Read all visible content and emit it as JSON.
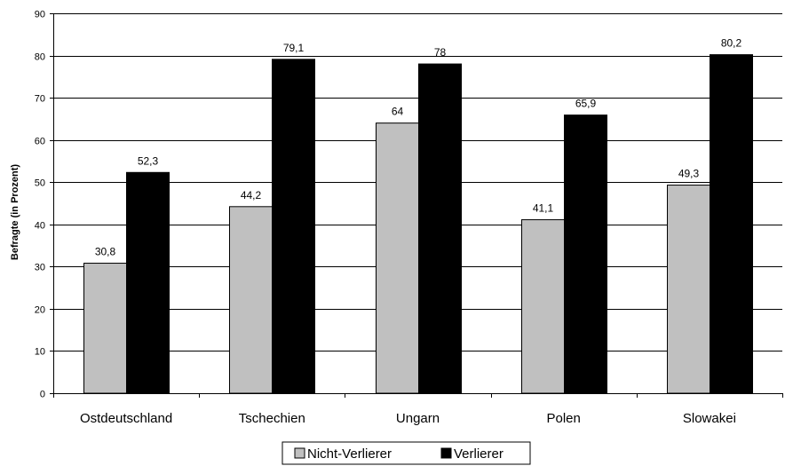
{
  "chart_data": {
    "type": "bar",
    "categories": [
      "Ostdeutschland",
      "Tschechien",
      "Ungarn",
      "Polen",
      "Slowakei"
    ],
    "series": [
      {
        "name": "Nicht-Verlierer",
        "values": [
          30.8,
          44.2,
          64,
          41.1,
          49.3
        ],
        "color": "#c0c0c0",
        "labels": [
          "30,8",
          "44,2",
          "64",
          "41,1",
          "49,3"
        ]
      },
      {
        "name": "Verlierer",
        "values": [
          52.3,
          79.1,
          78,
          65.9,
          80.2
        ],
        "color": "#000000",
        "labels": [
          "52,3",
          "79,1",
          "78",
          "65,9",
          "80,2"
        ]
      }
    ],
    "ylabel": "Befragte (in Prozent)",
    "xlabel": "",
    "ylim": [
      0,
      90
    ],
    "yticks": [
      0,
      10,
      20,
      30,
      40,
      50,
      60,
      70,
      80,
      90
    ],
    "grid": true,
    "legend": "bottom"
  }
}
